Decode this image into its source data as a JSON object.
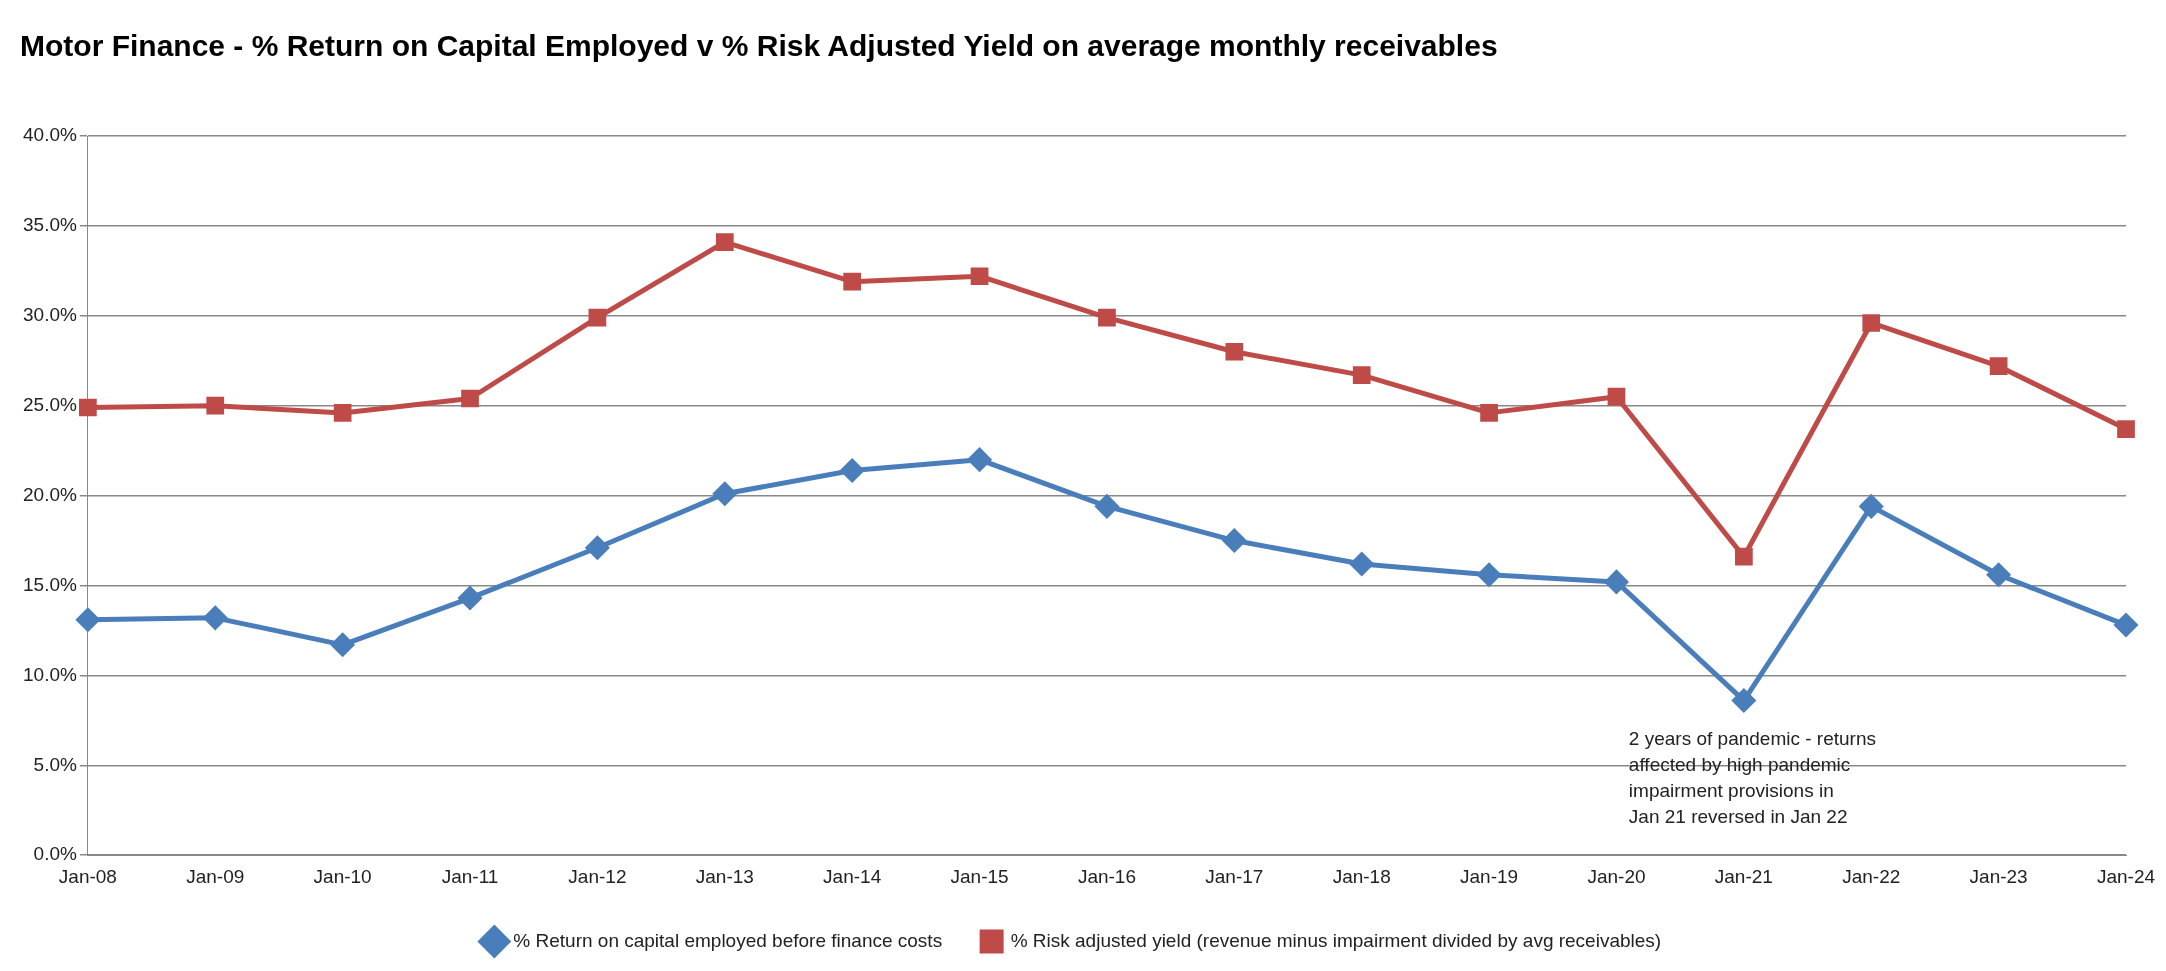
{
  "chart_data": {
    "type": "line",
    "title": "Motor Finance - % Return on Capital Employed v % Risk Adjusted Yield on average monthly receivables",
    "categories": [
      "Jan-08",
      "Jan-09",
      "Jan-10",
      "Jan-11",
      "Jan-12",
      "Jan-13",
      "Jan-14",
      "Jan-15",
      "Jan-16",
      "Jan-17",
      "Jan-18",
      "Jan-19",
      "Jan-20",
      "Jan-21",
      "Jan-22",
      "Jan-23",
      "Jan-24"
    ],
    "series": [
      {
        "name": "% Return on capital employed before finance costs",
        "color": "#4a7ebb",
        "marker": "diamond",
        "values": [
          13.1,
          13.2,
          11.7,
          14.3,
          17.1,
          20.1,
          21.4,
          22.0,
          19.4,
          17.5,
          16.2,
          15.6,
          15.2,
          8.6,
          19.4,
          15.6,
          12.8
        ]
      },
      {
        "name": "% Risk adjusted yield (revenue minus impairment divided by avg receivables)",
        "color": "#be4b48",
        "marker": "square",
        "values": [
          24.9,
          25.0,
          24.6,
          25.4,
          29.9,
          34.1,
          31.9,
          32.2,
          29.9,
          28.0,
          26.7,
          24.6,
          25.5,
          16.6,
          29.6,
          27.2,
          23.7
        ]
      }
    ],
    "ylim": [
      0,
      40
    ],
    "yticks": [
      {
        "value": 0,
        "label": "0.0%"
      },
      {
        "value": 5,
        "label": "5.0%"
      },
      {
        "value": 10,
        "label": "10.0%"
      },
      {
        "value": 15,
        "label": "15.0%"
      },
      {
        "value": 20,
        "label": "20.0%"
      },
      {
        "value": 25,
        "label": "25.0%"
      },
      {
        "value": 30,
        "label": "30.0%"
      },
      {
        "value": 35,
        "label": "35.0%"
      },
      {
        "value": 40,
        "label": "40.0%"
      }
    ],
    "grid": "y",
    "legend": "bottom",
    "line_style": "solid",
    "annotations": [
      {
        "text": "2 years of pandemic - returns\naffected by high pandemic\nimpairment provisions in\nJan 21 reversed in Jan 22",
        "x": "Jan-21",
        "y": 8.6
      }
    ]
  }
}
